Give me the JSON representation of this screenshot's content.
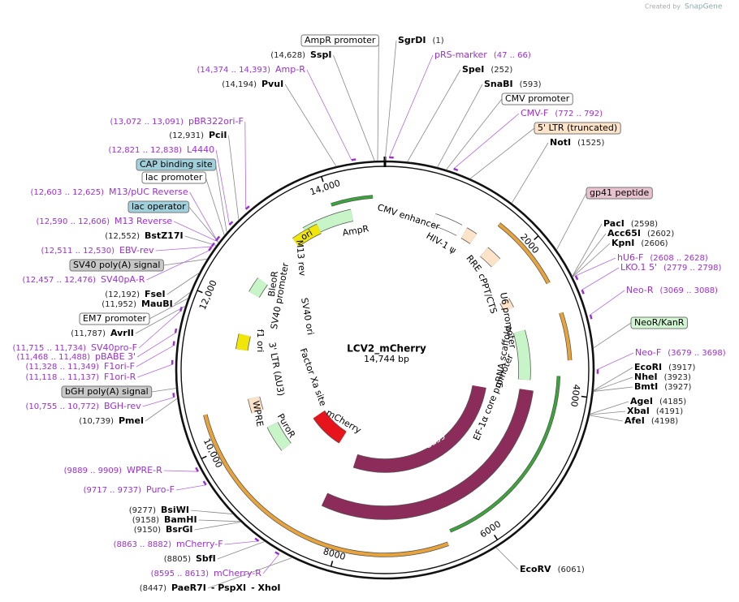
{
  "header": {
    "credit": "Created by",
    "brand": "SnapGene"
  },
  "map": {
    "name": "LCV2_mCherry",
    "size": "14,744 bp",
    "ticks": [
      "2000",
      "4000",
      "6000",
      "8000",
      "10,000",
      "12,000",
      "14,000"
    ]
  },
  "sites": [
    {
      "name": "AmpR promoter"
    },
    {
      "name": "SgrDI",
      "pos": "(1)"
    },
    {
      "name": "SspI",
      "pos": "(14,628)"
    },
    {
      "name": "pRS-marker",
      "pos": "(47 .. 66)"
    },
    {
      "name": "Amp-R",
      "pos": "(14,374 .. 14,393)"
    },
    {
      "name": "SpeI",
      "pos": "(252)"
    },
    {
      "name": "PvuI",
      "pos": "(14,194)"
    },
    {
      "name": "SnaBI",
      "pos": "(593)"
    },
    {
      "name": "CMV promoter"
    },
    {
      "name": "CMV-F",
      "pos": "(772 .. 792)"
    },
    {
      "name": "5' LTR (truncated)"
    },
    {
      "name": "NotI",
      "pos": "(1525)"
    },
    {
      "name": "pBR322ori-F",
      "pos": "(13,072 .. 13,091)"
    },
    {
      "name": "PciI",
      "pos": "(12,931)"
    },
    {
      "name": "L4440",
      "pos": "(12,821 .. 12,838)"
    },
    {
      "name": "CAP binding site"
    },
    {
      "name": "lac promoter"
    },
    {
      "name": "M13/pUC Reverse",
      "pos": "(12,603 .. 12,625)"
    },
    {
      "name": "lac operator"
    },
    {
      "name": "M13 Reverse",
      "pos": "(12,590 .. 12,606)"
    },
    {
      "name": "BstZ17I",
      "pos": "(12,552)"
    },
    {
      "name": "EBV-rev",
      "pos": "(12,511 .. 12,530)"
    },
    {
      "name": "SV40 poly(A) signal"
    },
    {
      "name": "SV40pA-R",
      "pos": "(12,457 .. 12,476)"
    },
    {
      "name": "FseI",
      "pos": "(12,192)"
    },
    {
      "name": "MauBI",
      "pos": "(11,952)"
    },
    {
      "name": "EM7 promoter"
    },
    {
      "name": "AvrII",
      "pos": "(11,787)"
    },
    {
      "name": "SV40pro-F",
      "pos": "(11,715 .. 11,734)"
    },
    {
      "name": "pBABE 3'",
      "pos": "(11,468 .. 11,488)"
    },
    {
      "name": "F1ori-F",
      "pos": "(11,328 .. 11,349)"
    },
    {
      "name": "F1ori-R",
      "pos": "(11,118 .. 11,137)"
    },
    {
      "name": "bGH poly(A) signal"
    },
    {
      "name": "BGH-rev",
      "pos": "(10,755 .. 10,772)"
    },
    {
      "name": "PmeI",
      "pos": "(10,739)"
    },
    {
      "name": "WPRE-R",
      "pos": "(9889 .. 9909)"
    },
    {
      "name": "Puro-F",
      "pos": "(9717 .. 9737)"
    },
    {
      "name": "BsiWI",
      "pos": "(9277)"
    },
    {
      "name": "BamHI",
      "pos": "(9158)"
    },
    {
      "name": "BsrGI",
      "pos": "(9150)"
    },
    {
      "name": "mCherry-F",
      "pos": "(8863 .. 8882)"
    },
    {
      "name": "SbfI",
      "pos": "(8805)"
    },
    {
      "name": "mCherry-R",
      "pos": "(8595 .. 8613)"
    },
    {
      "name": "PaeR7I",
      "pos": "(8447)",
      "extra": [
        "- PspXI",
        "- XhoI"
      ]
    },
    {
      "name": "gp41 peptide"
    },
    {
      "name": "PacI",
      "pos": "(2598)"
    },
    {
      "name": "Acc65I",
      "pos": "(2602)"
    },
    {
      "name": "KpnI",
      "pos": "(2606)"
    },
    {
      "name": "hU6-F",
      "pos": "(2608 .. 2628)"
    },
    {
      "name": "LKO.1 5'",
      "pos": "(2779 .. 2798)"
    },
    {
      "name": "Neo-R",
      "pos": "(3069 .. 3088)"
    },
    {
      "name": "NeoR/KanR"
    },
    {
      "name": "Neo-F",
      "pos": "(3679 .. 3698)"
    },
    {
      "name": "EcoRI",
      "pos": "(3917)"
    },
    {
      "name": "NheI",
      "pos": "(3923)"
    },
    {
      "name": "BmtI",
      "pos": "(3927)"
    },
    {
      "name": "AgeI",
      "pos": "(4185)"
    },
    {
      "name": "XbaI",
      "pos": "(4191)"
    },
    {
      "name": "AfeI",
      "pos": "(4198)"
    },
    {
      "name": "EcoRV",
      "pos": "(6061)"
    }
  ],
  "features": [
    "AmpR",
    "CMV enhancer",
    "HIV-1 ψ",
    "RRE",
    "cPPT/CTS",
    "U6 promoter",
    "gRNA scaffold",
    "EF-1α core promoter",
    "Cas9",
    "Cas9",
    "mCherry",
    "PuroR",
    "WPRE",
    "3' LTR (ΔU3)",
    "f1 ori",
    "Factor Xa site",
    "SV40 ori",
    "SV40 promoter",
    "BleoR",
    "M13 rev",
    "ori"
  ]
}
